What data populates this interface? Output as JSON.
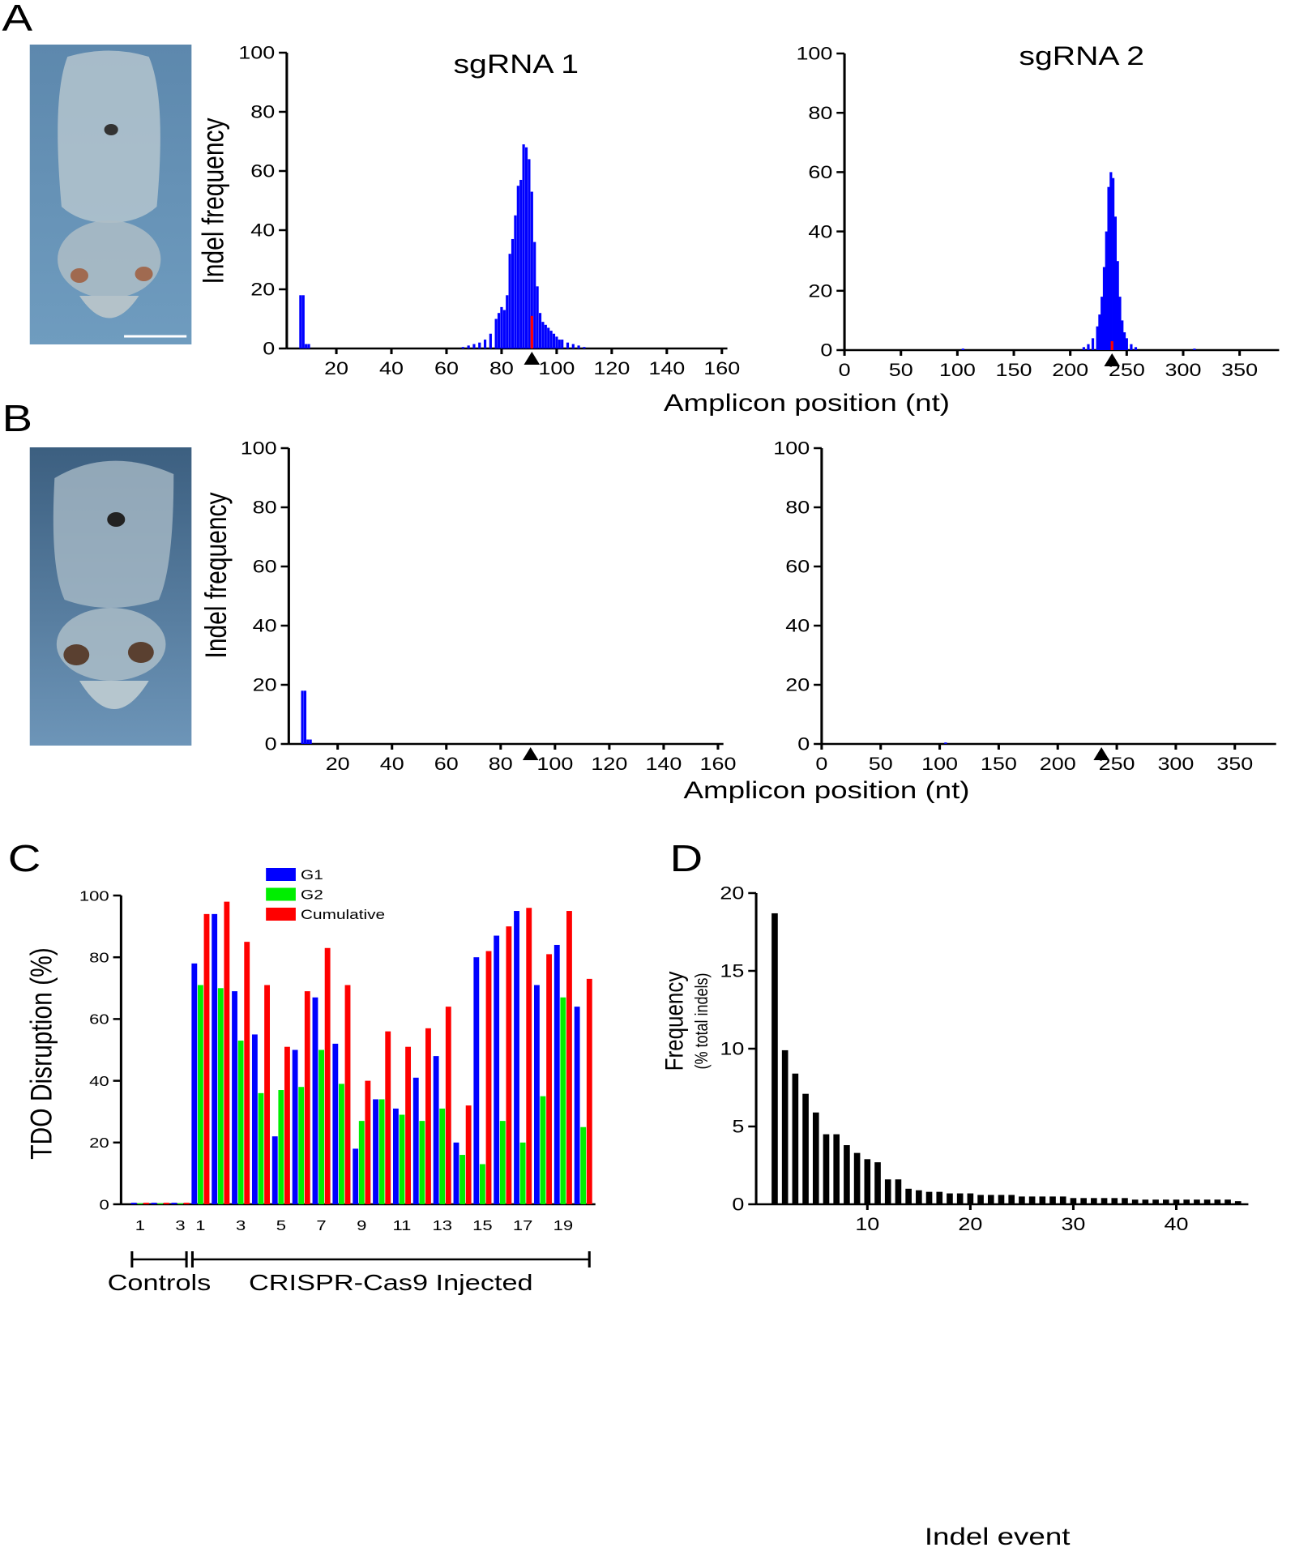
{
  "panels": [
    "A",
    "B",
    "C",
    "D"
  ],
  "chart_data": [
    {
      "type": "bar",
      "title": "sgRNA 1",
      "y_label": "Indel frequency",
      "xlim": [
        2,
        162
      ],
      "xticks": [
        20,
        40,
        60,
        80,
        100,
        120,
        140,
        160
      ],
      "ylim": [
        0,
        100
      ],
      "yticks": [
        0,
        20,
        40,
        60,
        80,
        100
      ],
      "marker_x": 91,
      "series": [
        {
          "color": "#0000ff",
          "x": [
            7,
            8,
            9,
            10,
            66,
            68,
            70,
            72,
            74,
            76,
            78,
            79,
            80,
            81,
            82,
            83,
            84,
            85,
            86,
            87,
            88,
            89,
            90,
            91,
            92,
            93,
            94,
            95,
            96,
            97,
            98,
            99,
            100,
            101,
            102,
            104,
            106,
            108,
            110
          ],
          "values": [
            18,
            18,
            1.5,
            1.5,
            0.5,
            1,
            1.5,
            2,
            3,
            5,
            10,
            12,
            14,
            13,
            18,
            32,
            37,
            45,
            55,
            57,
            69,
            68,
            64,
            53,
            36,
            21,
            12,
            9,
            8,
            7,
            6,
            5,
            4,
            3,
            3,
            2,
            1.5,
            1,
            0.5
          ]
        },
        {
          "color": "#ff0000",
          "x": [
            91
          ],
          "values": [
            11
          ]
        }
      ]
    },
    {
      "type": "bar",
      "title": "sgRNA 2",
      "x_label": "Amplicon position (nt)",
      "xlim": [
        0,
        385
      ],
      "xticks": [
        0,
        50,
        100,
        150,
        200,
        250,
        300,
        350
      ],
      "ylim": [
        0,
        100
      ],
      "yticks": [
        0,
        20,
        40,
        60,
        80,
        100
      ],
      "marker_x": 237,
      "series": [
        {
          "color": "#0000ff",
          "x": [
            105,
            212,
            216,
            220,
            224,
            226,
            228,
            230,
            232,
            234,
            236,
            238,
            240,
            242,
            244,
            246,
            248,
            250,
            254,
            258,
            310
          ],
          "values": [
            0.5,
            1,
            2,
            4,
            8,
            12,
            18,
            28,
            40,
            55,
            60,
            58,
            45,
            30,
            18,
            10,
            6,
            4,
            2,
            1,
            0.5
          ]
        },
        {
          "color": "#ff0000",
          "x": [
            237
          ],
          "values": [
            3
          ]
        }
      ]
    },
    {
      "type": "bar",
      "y_label": "Indel frequency",
      "xlim": [
        2,
        162
      ],
      "xticks": [
        20,
        40,
        60,
        80,
        100,
        120,
        140,
        160
      ],
      "ylim": [
        0,
        100
      ],
      "yticks": [
        0,
        20,
        40,
        60,
        80,
        100
      ],
      "marker_x": 91,
      "series": [
        {
          "color": "#0000ff",
          "x": [
            7,
            8,
            9,
            10
          ],
          "values": [
            18,
            18,
            1.5,
            1.5
          ]
        }
      ]
    },
    {
      "type": "bar",
      "x_label": "Amplicon position (nt)",
      "xlim": [
        0,
        385
      ],
      "xticks": [
        0,
        50,
        100,
        150,
        200,
        250,
        300,
        350
      ],
      "ylim": [
        0,
        100
      ],
      "yticks": [
        0,
        20,
        40,
        60,
        80,
        100
      ],
      "marker_x": 237,
      "series": [
        {
          "color": "#0000ff",
          "x": [
            105
          ],
          "values": [
            0.5
          ]
        }
      ]
    },
    {
      "type": "grouped_bar",
      "y_label": "TDO Disruption (%)",
      "ylim": [
        0,
        100
      ],
      "yticks": [
        0,
        20,
        40,
        60,
        80,
        100
      ],
      "groups": [
        {
          "label": "Controls",
          "categories": [
            "1",
            null,
            "3"
          ]
        },
        {
          "label": "CRISPR-Cas9 Injected",
          "categories": [
            "1",
            null,
            "3",
            null,
            "5",
            null,
            "7",
            null,
            "9",
            null,
            "11",
            null,
            "13",
            null,
            "15",
            null,
            "17",
            null,
            "19",
            null
          ]
        }
      ],
      "series": [
        {
          "name": "G1",
          "color": "#0000ff",
          "values": [
            0.5,
            0.5,
            0.5,
            78,
            94,
            69,
            55,
            22,
            50,
            67,
            52,
            18,
            34,
            31,
            41,
            48,
            20,
            80,
            87,
            95,
            71,
            84,
            64
          ]
        },
        {
          "name": "G2",
          "color": "#00ee00",
          "values": [
            0.3,
            0.3,
            0.3,
            71,
            70,
            53,
            36,
            37,
            38,
            50,
            39,
            27,
            34,
            29,
            27,
            31,
            16,
            13,
            27,
            20,
            35,
            67,
            25
          ]
        },
        {
          "name": "Cumulative",
          "color": "#ff0000",
          "values": [
            0.5,
            0.5,
            0.5,
            94,
            98,
            85,
            71,
            51,
            69,
            83,
            71,
            40,
            56,
            51,
            57,
            64,
            32,
            82,
            90,
            96,
            81,
            95,
            73
          ]
        }
      ]
    },
    {
      "type": "bar",
      "y_label": "Frequency",
      "y_sublabel": "(% total indels)",
      "x_label": "Indel event",
      "xlim": [
        -0.8,
        47
      ],
      "xticks": [
        10,
        20,
        30,
        40
      ],
      "ylim": [
        0,
        20
      ],
      "yticks": [
        0,
        5,
        10,
        15,
        20
      ],
      "series": [
        {
          "color": "#000000",
          "x": [
            1,
            2,
            3,
            4,
            5,
            6,
            7,
            8,
            9,
            10,
            11,
            12,
            13,
            14,
            15,
            16,
            17,
            18,
            19,
            20,
            21,
            22,
            23,
            24,
            25,
            26,
            27,
            28,
            29,
            30,
            31,
            32,
            33,
            34,
            35,
            36,
            37,
            38,
            39,
            40,
            41,
            42,
            43,
            44,
            45,
            46
          ],
          "values": [
            18.7,
            9.9,
            8.4,
            7.1,
            5.9,
            4.5,
            4.5,
            3.8,
            3.3,
            2.9,
            2.7,
            1.6,
            1.6,
            1.0,
            0.9,
            0.8,
            0.8,
            0.7,
            0.7,
            0.7,
            0.6,
            0.6,
            0.6,
            0.6,
            0.5,
            0.5,
            0.5,
            0.5,
            0.5,
            0.4,
            0.4,
            0.4,
            0.4,
            0.4,
            0.4,
            0.3,
            0.3,
            0.3,
            0.3,
            0.3,
            0.3,
            0.3,
            0.3,
            0.3,
            0.3,
            0.2
          ]
        }
      ]
    }
  ]
}
